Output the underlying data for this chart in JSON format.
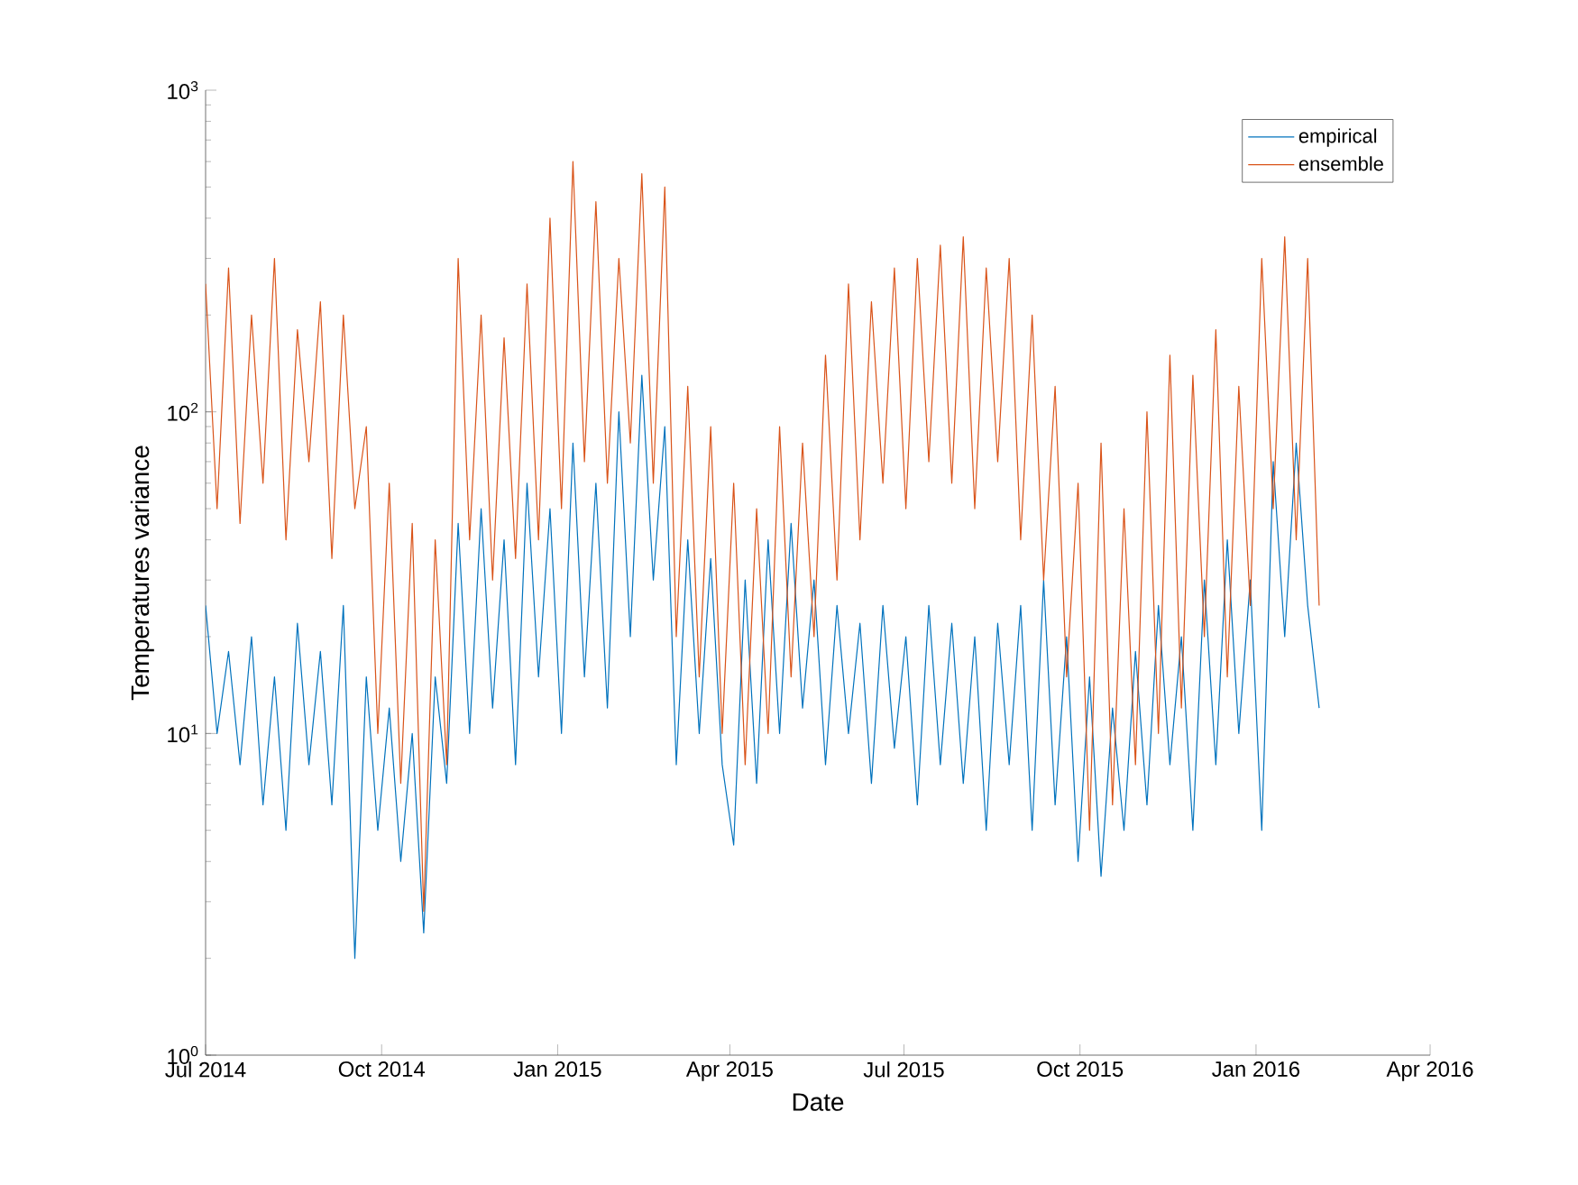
{
  "chart_data": {
    "type": "line",
    "xlabel": "Date",
    "ylabel": "Temperatures variance",
    "log": "y",
    "legend": "top right",
    "xlim": [
      "2014-07-01",
      "2016-04-01"
    ],
    "xticks": [
      {
        "value": "2014-07-01",
        "label": "Jul 2014"
      },
      {
        "value": "2014-10-01",
        "label": "Oct 2014"
      },
      {
        "value": "2015-01-01",
        "label": "Jan 2015"
      },
      {
        "value": "2015-04-01",
        "label": "Apr 2015"
      },
      {
        "value": "2015-07-01",
        "label": "Jul 2015"
      },
      {
        "value": "2015-10-01",
        "label": "Oct 2015"
      },
      {
        "value": "2016-01-01",
        "label": "Jan 2016"
      },
      {
        "value": "2016-04-01",
        "label": "Apr 2016"
      }
    ],
    "ylim": [
      1,
      1000
    ],
    "yticks": [
      {
        "value": 1,
        "label": "10$^{0}$"
      },
      {
        "value": 10,
        "label": "10$^{1}$"
      },
      {
        "value": 100,
        "label": "10$^{2}$"
      },
      {
        "value": 1000,
        "label": "10$^{3}$"
      }
    ],
    "x": [
      "2014-07-01",
      "2014-07-07",
      "2014-07-13",
      "2014-07-19",
      "2014-07-25",
      "2014-07-31",
      "2014-08-06",
      "2014-08-12",
      "2014-08-18",
      "2014-08-24",
      "2014-08-30",
      "2014-09-05",
      "2014-09-11",
      "2014-09-17",
      "2014-09-23",
      "2014-09-29",
      "2014-10-05",
      "2014-10-11",
      "2014-10-17",
      "2014-10-23",
      "2014-10-29",
      "2014-11-04",
      "2014-11-10",
      "2014-11-16",
      "2014-11-22",
      "2014-11-28",
      "2014-12-04",
      "2014-12-10",
      "2014-12-16",
      "2014-12-22",
      "2014-12-28",
      "2015-01-03",
      "2015-01-09",
      "2015-01-15",
      "2015-01-21",
      "2015-01-27",
      "2015-02-02",
      "2015-02-08",
      "2015-02-14",
      "2015-02-20",
      "2015-02-26",
      "2015-03-04",
      "2015-03-10",
      "2015-03-16",
      "2015-03-22",
      "2015-03-28",
      "2015-04-03",
      "2015-04-09",
      "2015-04-15",
      "2015-04-21",
      "2015-04-27",
      "2015-05-03",
      "2015-05-09",
      "2015-05-15",
      "2015-05-21",
      "2015-05-27",
      "2015-06-02",
      "2015-06-08",
      "2015-06-14",
      "2015-06-20",
      "2015-06-26",
      "2015-07-02",
      "2015-07-08",
      "2015-07-14",
      "2015-07-20",
      "2015-07-26",
      "2015-08-01",
      "2015-08-07",
      "2015-08-13",
      "2015-08-19",
      "2015-08-25",
      "2015-08-31",
      "2015-09-06",
      "2015-09-12",
      "2015-09-18",
      "2015-09-24",
      "2015-09-30",
      "2015-10-06",
      "2015-10-12",
      "2015-10-18",
      "2015-10-24",
      "2015-10-30",
      "2015-11-05",
      "2015-11-11",
      "2015-11-17",
      "2015-11-23",
      "2015-11-29",
      "2015-12-05",
      "2015-12-11",
      "2015-12-17",
      "2015-12-23",
      "2015-12-29",
      "2016-01-04",
      "2016-01-10",
      "2016-01-16",
      "2016-01-22",
      "2016-01-28",
      "2016-02-03"
    ],
    "series": [
      {
        "name": "empirical",
        "color": "#0072bd",
        "values": [
          25,
          10,
          18,
          8,
          20,
          6,
          15,
          5,
          22,
          8,
          18,
          6,
          25,
          2,
          15,
          5,
          12,
          4,
          10,
          2.4,
          15,
          7,
          45,
          10,
          50,
          12,
          40,
          8,
          60,
          15,
          50,
          10,
          80,
          15,
          60,
          12,
          100,
          20,
          130,
          30,
          90,
          8,
          40,
          10,
          35,
          8,
          4.5,
          30,
          7,
          40,
          10,
          45,
          12,
          30,
          8,
          25,
          10,
          22,
          7,
          25,
          9,
          20,
          6,
          25,
          8,
          22,
          7,
          20,
          5,
          22,
          8,
          25,
          5,
          30,
          6,
          20,
          4,
          15,
          3.6,
          12,
          5,
          18,
          6,
          25,
          8,
          20,
          5,
          30,
          8,
          40,
          10,
          30,
          5,
          70,
          20,
          80,
          25,
          12
        ]
      },
      {
        "name": "ensemble",
        "color": "#d95319",
        "values": [
          250,
          50,
          280,
          45,
          200,
          60,
          300,
          40,
          180,
          70,
          220,
          35,
          200,
          50,
          90,
          10,
          60,
          7,
          45,
          2.8,
          40,
          8,
          300,
          40,
          200,
          30,
          170,
          35,
          250,
          40,
          400,
          50,
          600,
          70,
          450,
          60,
          300,
          80,
          550,
          60,
          500,
          20,
          120,
          15,
          90,
          10,
          60,
          8,
          50,
          10,
          90,
          15,
          80,
          20,
          150,
          30,
          250,
          40,
          220,
          60,
          280,
          50,
          300,
          70,
          330,
          60,
          350,
          50,
          280,
          70,
          300,
          40,
          200,
          30,
          120,
          15,
          60,
          5,
          80,
          6,
          50,
          8,
          100,
          10,
          150,
          12,
          130,
          20,
          180,
          15,
          120,
          25,
          300,
          50,
          350,
          40,
          300,
          25
        ]
      }
    ]
  }
}
